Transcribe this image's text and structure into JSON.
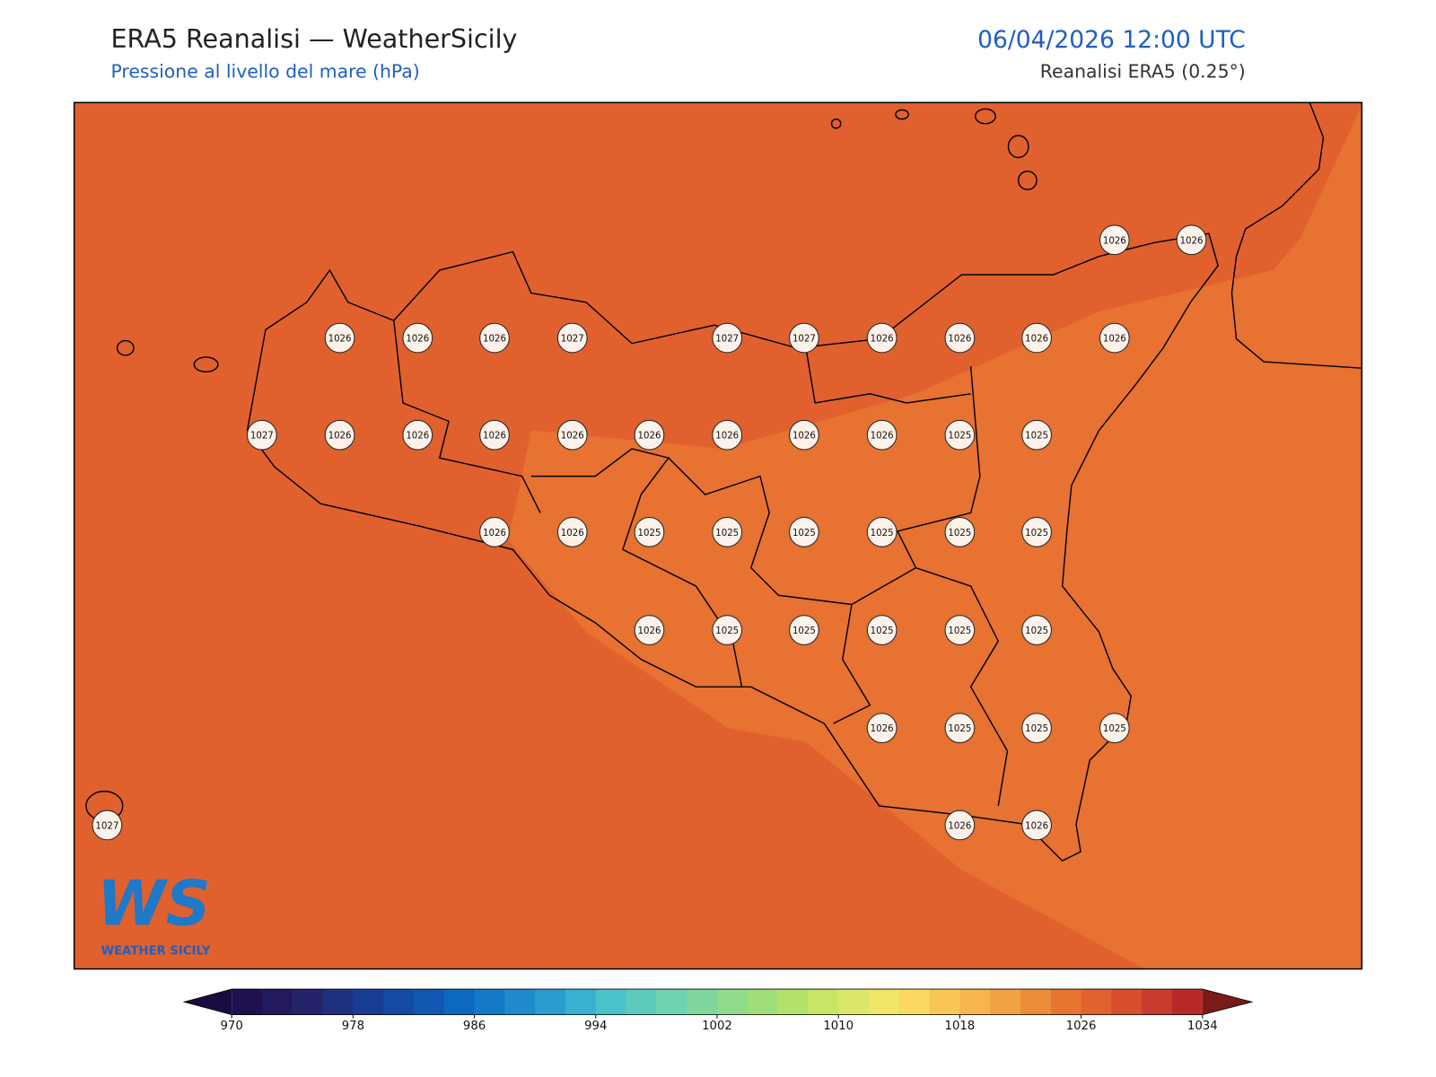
{
  "header": {
    "title": "ERA5 Reanalisi — WeatherSicily",
    "subtitle": "Pressione al livello del mare (hPa)",
    "datetime": "06/04/2026 12:00 UTC",
    "source": "Reanalisi ERA5 (0.25°)"
  },
  "map": {
    "values": [
      1026,
      1026,
      1026,
      1026,
      1026,
      1027,
      1027,
      1027,
      1026,
      1026,
      1026,
      1026,
      1027,
      1026,
      1026,
      1026,
      1026,
      1026,
      1026,
      1026,
      1026,
      1025,
      1025,
      1026,
      1026,
      1025,
      1025,
      1025,
      1025,
      1025,
      1025,
      1026,
      1025,
      1025,
      1025,
      1025,
      1025,
      1026,
      1025,
      1025,
      1025,
      1027,
      1026,
      1026
    ],
    "sea_color": "#e0612e",
    "band_color": "#e77231"
  },
  "logo": {
    "mark": "WS",
    "name": "WEATHER SICILY"
  },
  "colorbar": {
    "ticks": [
      970,
      978,
      986,
      994,
      1002,
      1010,
      1018,
      1026,
      1034
    ],
    "colors": [
      "#1f1050",
      "#221a5c",
      "#25246a",
      "#1f2f80",
      "#183b94",
      "#144aa4",
      "#1158b3",
      "#0d68c0",
      "#1479c8",
      "#1f8bcc",
      "#2a9ccf",
      "#37b0d2",
      "#4ac2cc",
      "#5fcbbf",
      "#6fd2b0",
      "#7fd79e",
      "#90db8b",
      "#a0de79",
      "#b3e26a",
      "#c8e566",
      "#dbe86b",
      "#f0e66a",
      "#fbd862",
      "#f9c656",
      "#f6b54d",
      "#f1a243",
      "#ec8c39",
      "#e77531",
      "#e0622e",
      "#d74f2d",
      "#c93b2c",
      "#b82a2a"
    ],
    "under_color": "#1a0c40",
    "over_color": "#7a1a1a"
  }
}
